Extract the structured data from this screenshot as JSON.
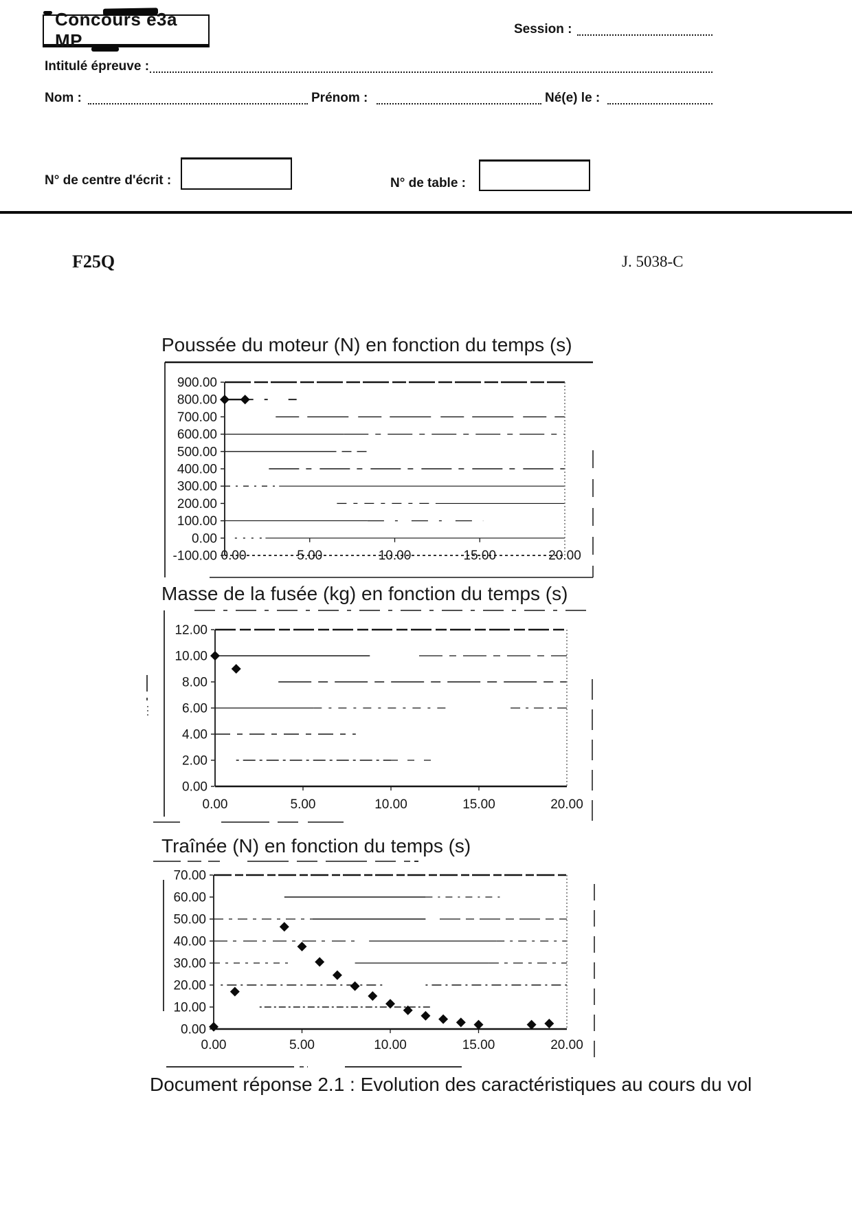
{
  "page": {
    "background": "#ffffff",
    "ink": "#151515"
  },
  "header": {
    "exam_box_label": "Concours e3a MP",
    "session_label": "Session :",
    "intitule_label": "Intitulé épreuve :",
    "nom_label": "Nom :",
    "prenom_label": "Prénom :",
    "ne_le_label": "Né(e) le :",
    "centre_ecrit_label": "N° de centre d'écrit :",
    "table_label": "N° de table :"
  },
  "codes": {
    "left": "F25Q",
    "right": "J. 5038-C"
  },
  "caption": "Document réponse 2.1 : Evolution des caractéristiques au cours du vol",
  "chart_data": [
    {
      "type": "scatter",
      "title": "Poussée du moteur (N) en fonction du temps (s)",
      "xlabel": "temps (s)",
      "ylabel": "Poussée du moteur (N)",
      "xlim": [
        0,
        20
      ],
      "ylim": [
        -100,
        900
      ],
      "grid": true,
      "legend": false,
      "marker": "diamond",
      "x_ticks": [
        0,
        5,
        10,
        15,
        20
      ],
      "x_tick_labels": [
        "0.00",
        "5.00",
        "10.00",
        "15.00",
        "20.00"
      ],
      "y_ticks": [
        900,
        800,
        700,
        600,
        500,
        400,
        300,
        200,
        100,
        0,
        -100
      ],
      "y_tick_labels": [
        "900.00",
        "800.00",
        "700.00",
        "600.00",
        "500.00",
        "400.00",
        "300.00",
        "200.00",
        "100.00",
        "0.00",
        "-100.00"
      ],
      "points": [
        [
          0,
          800
        ],
        [
          1.2,
          800
        ]
      ]
    },
    {
      "type": "scatter",
      "title": "Masse de la fusée (kg) en fonction du temps (s)",
      "xlabel": "temps (s)",
      "ylabel": "Masse de la fusée (kg)",
      "xlim": [
        0,
        20
      ],
      "ylim": [
        0,
        12
      ],
      "grid": true,
      "legend": false,
      "marker": "diamond",
      "x_ticks": [
        0,
        5,
        10,
        15,
        20
      ],
      "x_tick_labels": [
        "0.00",
        "5.00",
        "10.00",
        "15.00",
        "20.00"
      ],
      "y_ticks": [
        12,
        10,
        8,
        6,
        4,
        2,
        0
      ],
      "y_tick_labels": [
        "12.00",
        "10.00",
        "8.00",
        "6.00",
        "4.00",
        "2.00",
        "0.00"
      ],
      "points": [
        [
          0,
          10
        ],
        [
          1.2,
          9
        ]
      ]
    },
    {
      "type": "scatter",
      "title": "Traînée (N) en fonction du temps (s)",
      "xlabel": "temps (s)",
      "ylabel": "Traînée (N)",
      "xlim": [
        0,
        20
      ],
      "ylim": [
        0,
        70
      ],
      "grid": true,
      "legend": false,
      "marker": "diamond",
      "x_ticks": [
        0,
        5,
        10,
        15,
        20
      ],
      "x_tick_labels": [
        "0.00",
        "5.00",
        "10.00",
        "15.00",
        "20.00"
      ],
      "y_ticks": [
        70,
        60,
        50,
        40,
        30,
        20,
        10,
        0
      ],
      "y_tick_labels": [
        "70.00",
        "60.00",
        "50.00",
        "40.00",
        "30.00",
        "20.00",
        "10.00",
        "0.00"
      ],
      "points": [
        [
          0,
          1
        ],
        [
          1.2,
          17
        ],
        [
          4,
          46.5
        ],
        [
          5,
          37.5
        ],
        [
          6,
          30.5
        ],
        [
          7,
          24.5
        ],
        [
          8,
          19.5
        ],
        [
          9,
          15
        ],
        [
          10,
          11.5
        ],
        [
          11,
          8.5
        ],
        [
          12,
          6
        ],
        [
          13,
          4.5
        ],
        [
          14,
          3
        ],
        [
          15,
          2
        ],
        [
          18,
          2
        ],
        [
          19,
          2.5
        ]
      ]
    }
  ]
}
